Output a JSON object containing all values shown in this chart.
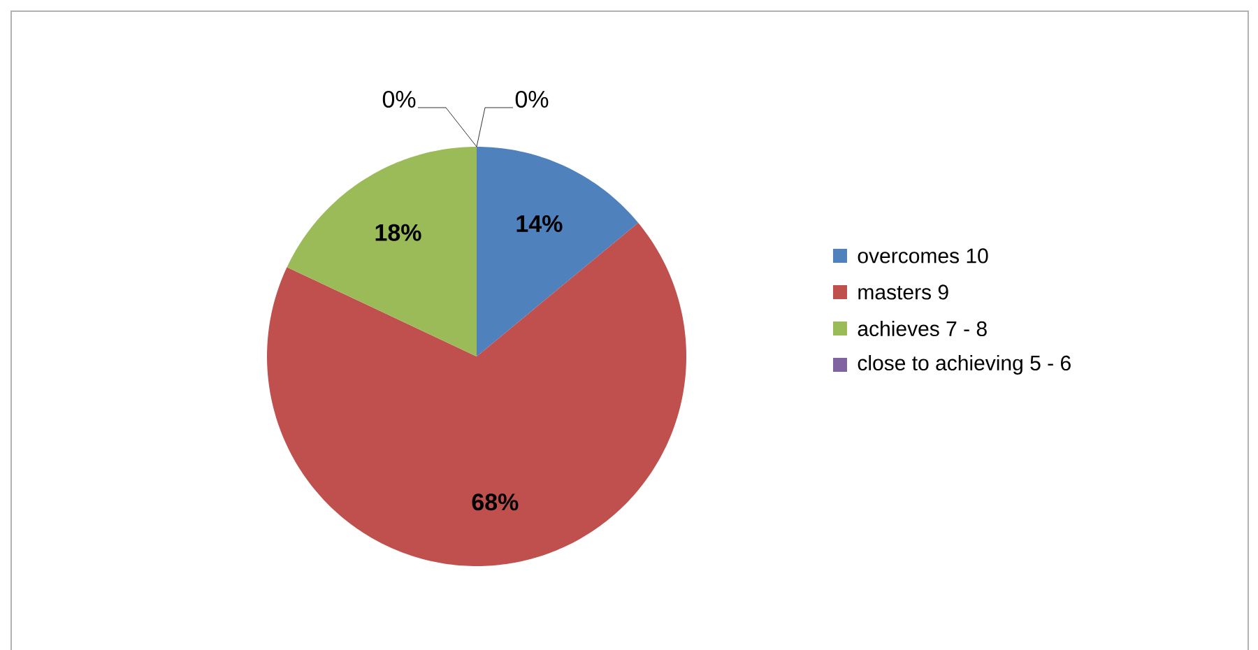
{
  "chart_data": {
    "type": "pie",
    "categories": [
      "overcomes 10",
      "masters 9",
      "achieves 7 - 8",
      "close to achieving 5 - 6",
      null
    ],
    "values": [
      14,
      68,
      18,
      0,
      0
    ],
    "colors": [
      "#4f81bd",
      "#c0504d",
      "#9bbb59",
      "#8064a2",
      "#4bacc6"
    ],
    "value_labels": [
      "14%",
      "68%",
      "18%",
      "0%",
      "0%"
    ],
    "legend": "right"
  }
}
